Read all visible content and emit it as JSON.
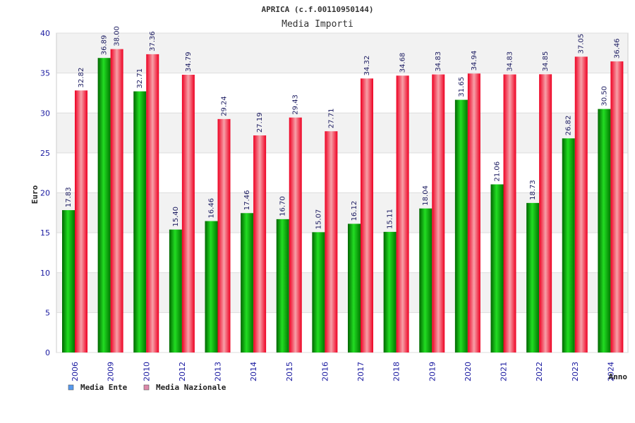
{
  "chart_data": {
    "type": "bar",
    "title": "APRICA (c.f.00110950144)",
    "subtitle": "Media Importi",
    "xlabel": "Anno",
    "ylabel": "Euro",
    "ylim": [
      0,
      40
    ],
    "yticks": [
      0,
      5,
      10,
      15,
      20,
      25,
      30,
      35,
      40
    ],
    "grid": true,
    "legend_position": "bottom-left",
    "categories": [
      "2006",
      "2009",
      "2010",
      "2012",
      "2013",
      "2014",
      "2015",
      "2016",
      "2017",
      "2018",
      "2019",
      "2020",
      "2021",
      "2022",
      "2023",
      "2024"
    ],
    "series": [
      {
        "name": "Media Ente",
        "color": "#00aa00",
        "legend_color": "#5599ee",
        "values": [
          17.83,
          36.89,
          32.71,
          15.4,
          16.46,
          17.46,
          16.7,
          15.07,
          16.12,
          15.11,
          18.04,
          31.65,
          21.06,
          18.73,
          26.82,
          30.5
        ],
        "labels": [
          "17.83",
          "36.89",
          "32.71",
          "15.40",
          "16.46",
          "17.46",
          "16.70",
          "15.07",
          "16.12",
          "15.11",
          "18.04",
          "31.65",
          "21.06",
          "18.73",
          "26.82",
          "30.50"
        ]
      },
      {
        "name": "Media Nazionale",
        "color": "#ee1122",
        "legend_color": "#dd88aa",
        "values": [
          32.82,
          38.0,
          37.36,
          34.79,
          29.24,
          27.19,
          29.43,
          27.71,
          34.32,
          34.68,
          34.83,
          34.94,
          34.83,
          34.85,
          37.05,
          36.46
        ],
        "labels": [
          "32.82",
          "38.00",
          "37.36",
          "34.79",
          "29.24",
          "27.19",
          "29.43",
          "27.71",
          "34.32",
          "34.68",
          "34.83",
          "34.94",
          "34.83",
          "34.85",
          "37.05",
          "36.46"
        ]
      }
    ]
  }
}
